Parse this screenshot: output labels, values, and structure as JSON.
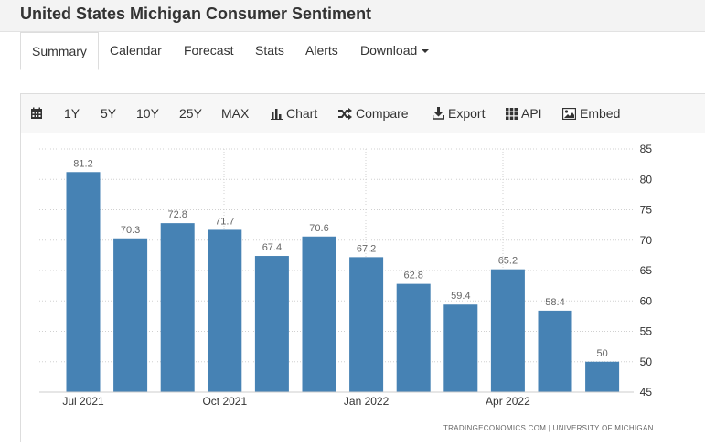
{
  "page": {
    "title": "United States Michigan Consumer Sentiment"
  },
  "tabs": [
    {
      "label": "Summary",
      "active": true
    },
    {
      "label": "Calendar"
    },
    {
      "label": "Forecast"
    },
    {
      "label": "Stats"
    },
    {
      "label": "Alerts"
    },
    {
      "label": "Download"
    }
  ],
  "toolbar": {
    "calendar_icon": "calendar-icon",
    "ranges": [
      "1Y",
      "5Y",
      "10Y",
      "25Y",
      "MAX"
    ],
    "chart_label": "Chart",
    "compare_label": "Compare",
    "export_label": "Export",
    "api_label": "API",
    "embed_label": "Embed"
  },
  "colors": {
    "bar": "#4682b4",
    "grid": "#d0d0d0",
    "label": "#666666"
  },
  "chart_data": {
    "type": "bar",
    "title": "",
    "categories": [
      "Jul 2021",
      "Aug 2021",
      "Sep 2021",
      "Oct 2021",
      "Nov 2021",
      "Dec 2021",
      "Jan 2022",
      "Feb 2022",
      "Mar 2022",
      "Apr 2022",
      "May 2022",
      "Jun 2022"
    ],
    "values": [
      81.2,
      70.3,
      72.8,
      71.7,
      67.4,
      70.6,
      67.2,
      62.8,
      59.4,
      65.2,
      58.4,
      50
    ],
    "value_labels": [
      "81.2",
      "70.3",
      "72.8",
      "71.7",
      "67.4",
      "70.6",
      "67.2",
      "62.8",
      "59.4",
      "65.2",
      "58.4",
      "50"
    ],
    "x_tick_labels": [
      "Jul 2021",
      "Oct 2021",
      "Jan 2022",
      "Apr 2022"
    ],
    "x_tick_categories": [
      0,
      3,
      6,
      9
    ],
    "y_ticks": [
      45,
      50,
      55,
      60,
      65,
      70,
      75,
      80,
      85
    ],
    "ylim": [
      45,
      85
    ],
    "y_axis_side": "right",
    "grid": true,
    "source": "TRADINGECONOMICS.COM  |  UNIVERSITY OF MICHIGAN"
  }
}
